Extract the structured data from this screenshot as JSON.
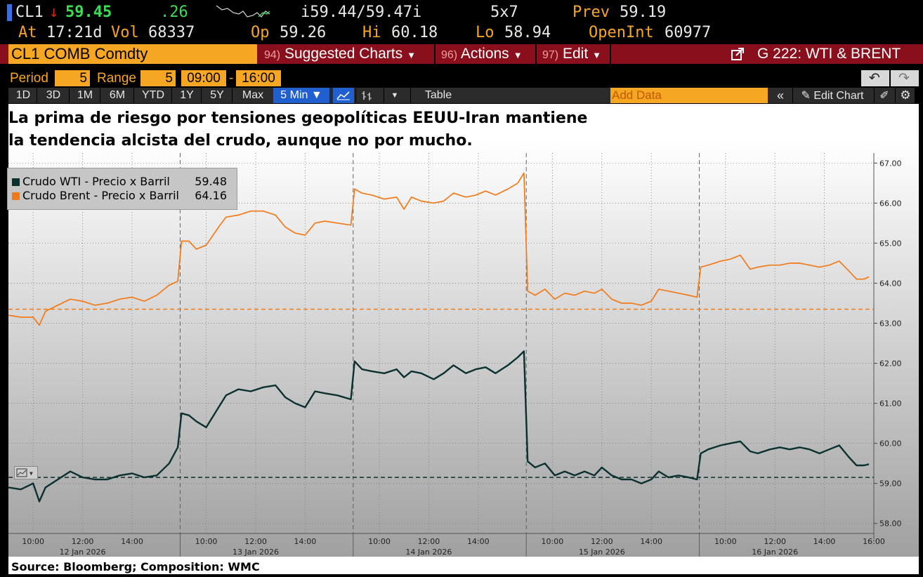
{
  "quote": {
    "ticker": "CL1",
    "arrow": "↓",
    "last": "59.45",
    "change": ".26",
    "bid_ask": "i59.44/59.47i",
    "size": "5x7",
    "prev_label": "Prev",
    "prev": "59.19",
    "at_label": "At",
    "at": "17:21d",
    "vol_label": "Vol",
    "vol": "68337",
    "op_label": "Op",
    "op": "59.26",
    "hi_label": "Hi",
    "hi": "60.18",
    "lo_label": "Lo",
    "lo": "58.94",
    "oi_label": "OpenInt",
    "oi": "60977"
  },
  "menu": {
    "security": "CL1 COMB Comdty",
    "suggested_num": "94)",
    "suggested": "Suggested Charts",
    "actions_num": "96)",
    "actions": "Actions",
    "edit_num": "97)",
    "edit": "Edit",
    "chart_id": "G 222: WTI & BRENT"
  },
  "period": {
    "period_label": "Period",
    "period_value": "5",
    "range_label": "Range",
    "range_value": "5",
    "start": "09:00",
    "end": "16:00"
  },
  "toolbar": {
    "ranges": [
      "1D",
      "3D",
      "1M",
      "6M",
      "YTD",
      "1Y",
      "5Y",
      "Max"
    ],
    "interval": "5 Min ▼",
    "table": "Table",
    "add_data_placeholder": "Add Data",
    "edit_chart": "Edit Chart"
  },
  "chart_data": {
    "type": "line",
    "title": "La prima de riesgo por tensiones geopolíticas EEUU-Iran mantiene la tendencia alcista del crudo, aunque no por mucho.",
    "title_lines": [
      "La prima de riesgo por tensiones geopolíticas EEUU-Iran mantiene",
      "la tendencia alcista del crudo, aunque no por mucho."
    ],
    "source": "Source: Bloomberg; Composition: WMC",
    "ylim": [
      57.75,
      67.25
    ],
    "yticks": [
      "58.00",
      "59.00",
      "60.00",
      "61.00",
      "62.00",
      "63.00",
      "64.00",
      "65.00",
      "66.00",
      "67.00"
    ],
    "days": [
      "12 Jan 2026",
      "13 Jan 2026",
      "14 Jan 2026",
      "15 Jan 2026",
      "16 Jan 2026"
    ],
    "hour_ticks": [
      "10:00",
      "12:00",
      "14:00"
    ],
    "last_hour_tick": "16:00",
    "session_hours": [
      9,
      16
    ],
    "grid": true,
    "legend_position": "top-left",
    "series": [
      {
        "name": "Crudo WTI - Precio x Barril",
        "last": "59.48",
        "color": "#0b3030",
        "reference_line": 59.15,
        "points": [
          [
            0,
            9.0,
            58.9
          ],
          [
            0,
            9.5,
            58.85
          ],
          [
            0,
            10.0,
            59.0
          ],
          [
            0,
            10.25,
            58.55
          ],
          [
            0,
            10.5,
            58.9
          ],
          [
            0,
            11.0,
            59.1
          ],
          [
            0,
            11.5,
            59.3
          ],
          [
            0,
            12.0,
            59.15
          ],
          [
            0,
            12.5,
            59.1
          ],
          [
            0,
            13.0,
            59.1
          ],
          [
            0,
            13.5,
            59.2
          ],
          [
            0,
            14.0,
            59.25
          ],
          [
            0,
            14.5,
            59.15
          ],
          [
            0,
            15.0,
            59.2
          ],
          [
            0,
            15.5,
            59.5
          ],
          [
            0,
            15.85,
            59.9
          ],
          [
            1,
            9.0,
            60.75
          ],
          [
            1,
            9.3,
            60.7
          ],
          [
            1,
            9.6,
            60.55
          ],
          [
            1,
            10.0,
            60.4
          ],
          [
            1,
            10.5,
            60.9
          ],
          [
            1,
            10.8,
            61.2
          ],
          [
            1,
            11.3,
            61.35
          ],
          [
            1,
            11.8,
            61.3
          ],
          [
            1,
            12.3,
            61.4
          ],
          [
            1,
            12.8,
            61.45
          ],
          [
            1,
            13.2,
            61.15
          ],
          [
            1,
            13.6,
            61.0
          ],
          [
            1,
            14.0,
            60.9
          ],
          [
            1,
            14.4,
            61.3
          ],
          [
            1,
            14.8,
            61.25
          ],
          [
            1,
            15.3,
            61.2
          ],
          [
            1,
            15.85,
            61.1
          ],
          [
            2,
            9.0,
            62.05
          ],
          [
            2,
            9.3,
            61.85
          ],
          [
            2,
            9.7,
            61.8
          ],
          [
            2,
            10.2,
            61.75
          ],
          [
            2,
            10.7,
            61.85
          ],
          [
            2,
            11.0,
            61.65
          ],
          [
            2,
            11.3,
            61.8
          ],
          [
            2,
            11.7,
            61.75
          ],
          [
            2,
            12.2,
            61.6
          ],
          [
            2,
            12.6,
            61.75
          ],
          [
            2,
            13.0,
            61.95
          ],
          [
            2,
            13.5,
            61.75
          ],
          [
            2,
            13.9,
            61.85
          ],
          [
            2,
            14.3,
            61.9
          ],
          [
            2,
            14.7,
            61.75
          ],
          [
            2,
            15.2,
            61.95
          ],
          [
            2,
            15.6,
            62.15
          ],
          [
            2,
            15.85,
            62.3
          ],
          [
            3,
            9.0,
            59.55
          ],
          [
            3,
            9.3,
            59.4
          ],
          [
            3,
            9.7,
            59.5
          ],
          [
            3,
            10.1,
            59.2
          ],
          [
            3,
            10.5,
            59.3
          ],
          [
            3,
            10.9,
            59.2
          ],
          [
            3,
            11.3,
            59.3
          ],
          [
            3,
            11.7,
            59.2
          ],
          [
            3,
            12.0,
            59.4
          ],
          [
            3,
            12.4,
            59.2
          ],
          [
            3,
            12.8,
            59.1
          ],
          [
            3,
            13.2,
            59.1
          ],
          [
            3,
            13.6,
            59.0
          ],
          [
            3,
            14.0,
            59.1
          ],
          [
            3,
            14.3,
            59.3
          ],
          [
            3,
            14.7,
            59.15
          ],
          [
            3,
            15.1,
            59.2
          ],
          [
            3,
            15.5,
            59.15
          ],
          [
            3,
            15.85,
            59.1
          ],
          [
            4,
            9.0,
            59.75
          ],
          [
            4,
            9.3,
            59.85
          ],
          [
            4,
            9.8,
            59.95
          ],
          [
            4,
            10.2,
            60.0
          ],
          [
            4,
            10.6,
            60.05
          ],
          [
            4,
            11.0,
            59.8
          ],
          [
            4,
            11.3,
            59.75
          ],
          [
            4,
            11.8,
            59.85
          ],
          [
            4,
            12.2,
            59.9
          ],
          [
            4,
            12.6,
            59.85
          ],
          [
            4,
            13.0,
            59.9
          ],
          [
            4,
            13.4,
            59.85
          ],
          [
            4,
            13.8,
            59.75
          ],
          [
            4,
            14.2,
            59.85
          ],
          [
            4,
            14.6,
            59.95
          ],
          [
            4,
            15.0,
            59.65
          ],
          [
            4,
            15.3,
            59.45
          ],
          [
            4,
            15.6,
            59.45
          ],
          [
            4,
            15.8,
            59.48
          ]
        ]
      },
      {
        "name": "Crudo Brent - Precio x Barril",
        "last": "64.16",
        "color": "#f27a18",
        "reference_line": 63.35,
        "points": [
          [
            0,
            9.0,
            63.2
          ],
          [
            0,
            9.5,
            63.15
          ],
          [
            0,
            10.0,
            63.15
          ],
          [
            0,
            10.25,
            62.95
          ],
          [
            0,
            10.5,
            63.3
          ],
          [
            0,
            11.0,
            63.45
          ],
          [
            0,
            11.5,
            63.6
          ],
          [
            0,
            12.0,
            63.55
          ],
          [
            0,
            12.5,
            63.45
          ],
          [
            0,
            13.0,
            63.5
          ],
          [
            0,
            13.5,
            63.6
          ],
          [
            0,
            14.0,
            63.65
          ],
          [
            0,
            14.5,
            63.55
          ],
          [
            0,
            15.0,
            63.7
          ],
          [
            0,
            15.5,
            63.95
          ],
          [
            0,
            15.85,
            64.05
          ],
          [
            1,
            9.0,
            65.05
          ],
          [
            1,
            9.3,
            65.05
          ],
          [
            1,
            9.6,
            64.85
          ],
          [
            1,
            10.0,
            64.95
          ],
          [
            1,
            10.5,
            65.4
          ],
          [
            1,
            10.8,
            65.65
          ],
          [
            1,
            11.3,
            65.7
          ],
          [
            1,
            11.8,
            65.8
          ],
          [
            1,
            12.3,
            65.8
          ],
          [
            1,
            12.8,
            65.7
          ],
          [
            1,
            13.2,
            65.4
          ],
          [
            1,
            13.6,
            65.25
          ],
          [
            1,
            14.0,
            65.2
          ],
          [
            1,
            14.4,
            65.5
          ],
          [
            1,
            14.8,
            65.55
          ],
          [
            1,
            15.3,
            65.5
          ],
          [
            1,
            15.85,
            65.45
          ],
          [
            2,
            9.0,
            66.35
          ],
          [
            2,
            9.3,
            66.25
          ],
          [
            2,
            9.7,
            66.2
          ],
          [
            2,
            10.2,
            66.1
          ],
          [
            2,
            10.7,
            66.15
          ],
          [
            2,
            11.0,
            65.85
          ],
          [
            2,
            11.3,
            66.15
          ],
          [
            2,
            11.7,
            66.05
          ],
          [
            2,
            12.2,
            66.0
          ],
          [
            2,
            12.6,
            66.05
          ],
          [
            2,
            13.0,
            66.25
          ],
          [
            2,
            13.5,
            66.15
          ],
          [
            2,
            13.9,
            66.2
          ],
          [
            2,
            14.3,
            66.3
          ],
          [
            2,
            14.7,
            66.2
          ],
          [
            2,
            15.2,
            66.35
          ],
          [
            2,
            15.6,
            66.5
          ],
          [
            2,
            15.85,
            66.75
          ],
          [
            3,
            9.0,
            63.8
          ],
          [
            3,
            9.3,
            63.7
          ],
          [
            3,
            9.7,
            63.85
          ],
          [
            3,
            10.1,
            63.6
          ],
          [
            3,
            10.5,
            63.75
          ],
          [
            3,
            10.9,
            63.7
          ],
          [
            3,
            11.3,
            63.8
          ],
          [
            3,
            11.7,
            63.75
          ],
          [
            3,
            12.0,
            63.85
          ],
          [
            3,
            12.4,
            63.6
          ],
          [
            3,
            12.8,
            63.5
          ],
          [
            3,
            13.2,
            63.5
          ],
          [
            3,
            13.6,
            63.45
          ],
          [
            3,
            14.0,
            63.55
          ],
          [
            3,
            14.3,
            63.85
          ],
          [
            3,
            14.7,
            63.8
          ],
          [
            3,
            15.1,
            63.75
          ],
          [
            3,
            15.5,
            63.7
          ],
          [
            3,
            15.85,
            63.65
          ],
          [
            4,
            9.0,
            64.4
          ],
          [
            4,
            9.3,
            64.45
          ],
          [
            4,
            9.8,
            64.55
          ],
          [
            4,
            10.2,
            64.6
          ],
          [
            4,
            10.6,
            64.7
          ],
          [
            4,
            11.0,
            64.35
          ],
          [
            4,
            11.3,
            64.4
          ],
          [
            4,
            11.8,
            64.45
          ],
          [
            4,
            12.2,
            64.45
          ],
          [
            4,
            12.6,
            64.5
          ],
          [
            4,
            13.0,
            64.5
          ],
          [
            4,
            13.4,
            64.45
          ],
          [
            4,
            13.8,
            64.4
          ],
          [
            4,
            14.2,
            64.45
          ],
          [
            4,
            14.6,
            64.55
          ],
          [
            4,
            15.0,
            64.3
          ],
          [
            4,
            15.3,
            64.1
          ],
          [
            4,
            15.6,
            64.1
          ],
          [
            4,
            15.8,
            64.16
          ]
        ]
      }
    ]
  },
  "colors": {
    "bloomberg_orange": "#f5a623",
    "menu_red": "#8a0f1c",
    "selected_blue": "#1f5fd0",
    "up_green": "#3ddc54",
    "down_red": "#e02020"
  }
}
